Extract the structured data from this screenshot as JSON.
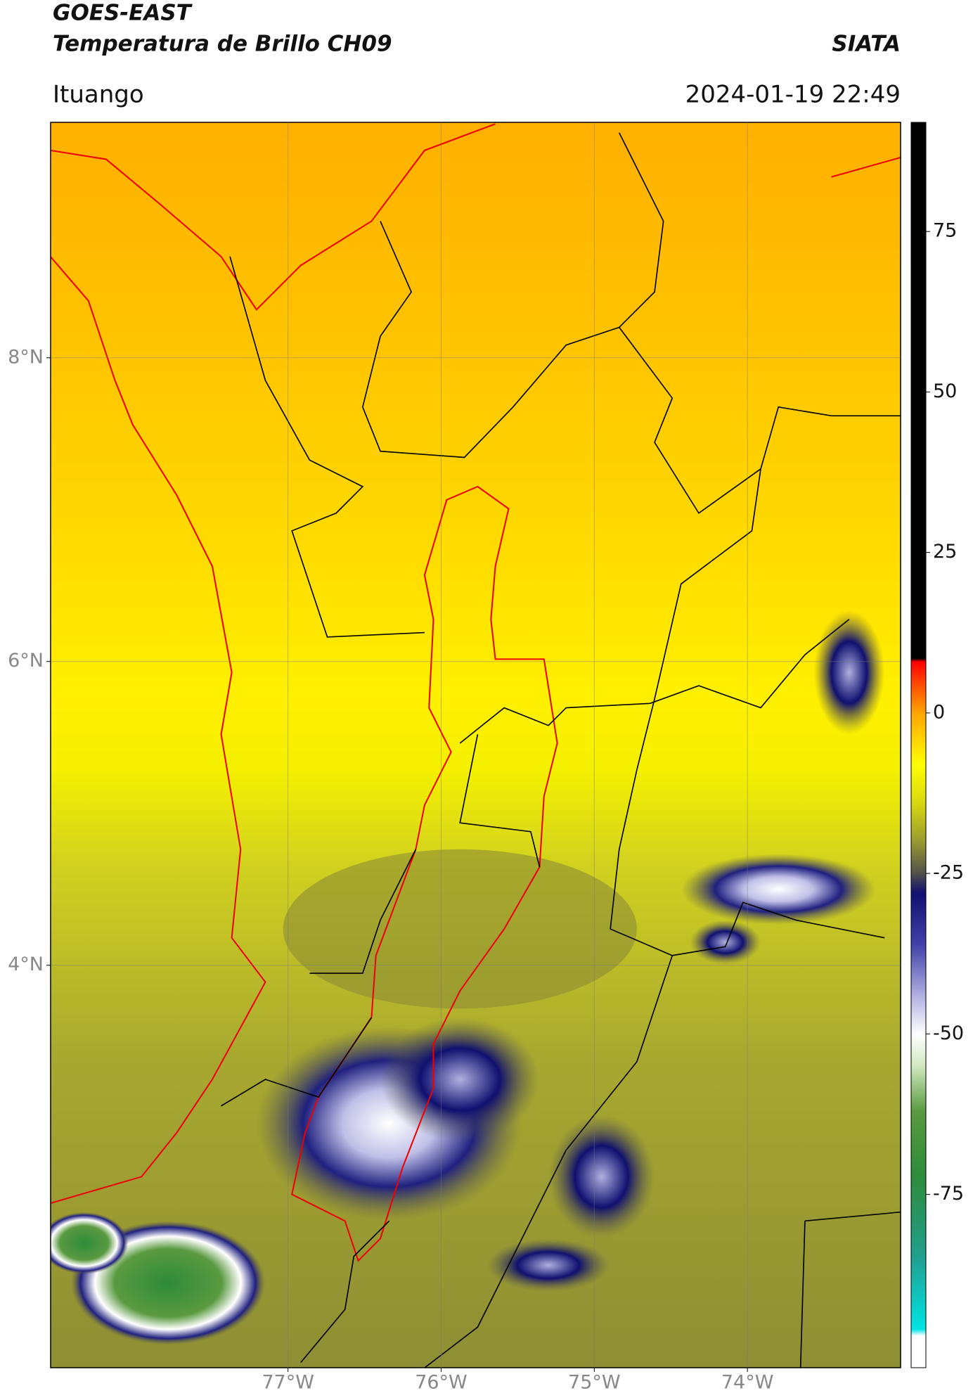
{
  "chart_data": {
    "type": "map",
    "title": "GOES-EAST",
    "subtitle": "Temperatura de Brillo CH09",
    "source": "SIATA",
    "location": "Ituango",
    "timestamp": "2024-01-19 22:49",
    "xlim": [
      -78.55,
      -73.0
    ],
    "ylim": [
      1.35,
      9.55
    ],
    "xticks": [
      {
        "value": -77,
        "label": "77°W"
      },
      {
        "value": -76,
        "label": "76°W"
      },
      {
        "value": -75,
        "label": "75°W"
      },
      {
        "value": -74,
        "label": "74°W"
      }
    ],
    "yticks": [
      {
        "value": 4,
        "label": "4°N"
      },
      {
        "value": 6,
        "label": "6°N"
      },
      {
        "value": 8,
        "label": "8°N"
      }
    ],
    "grid": true,
    "colorbar": {
      "clim": [
        -102,
        92
      ],
      "ticks": [
        -75,
        -50,
        -25,
        0,
        25,
        50,
        75
      ],
      "colormap": [
        {
          "value": -102,
          "color": "#ffffff"
        },
        {
          "value": -97,
          "color": "#ffffff"
        },
        {
          "value": -96,
          "color": "#00e5e5"
        },
        {
          "value": -85,
          "color": "#20a090"
        },
        {
          "value": -72,
          "color": "#2e8b3a"
        },
        {
          "value": -62,
          "color": "#5a9a40"
        },
        {
          "value": -55,
          "color": "#d0e8c0"
        },
        {
          "value": -50,
          "color": "#ffffff"
        },
        {
          "value": -44,
          "color": "#b0b0e0"
        },
        {
          "value": -36,
          "color": "#4040a8"
        },
        {
          "value": -28,
          "color": "#101070"
        },
        {
          "value": -25,
          "color": "#50504a"
        },
        {
          "value": -20,
          "color": "#9a9a30"
        },
        {
          "value": -14,
          "color": "#d8d810"
        },
        {
          "value": -8,
          "color": "#ffff00"
        },
        {
          "value": 0,
          "color": "#ffa500"
        },
        {
          "value": 5,
          "color": "#ff4000"
        },
        {
          "value": 8,
          "color": "#ff0000"
        },
        {
          "value": 8.5,
          "color": "#000000"
        },
        {
          "value": 92,
          "color": "#000000"
        }
      ]
    }
  }
}
